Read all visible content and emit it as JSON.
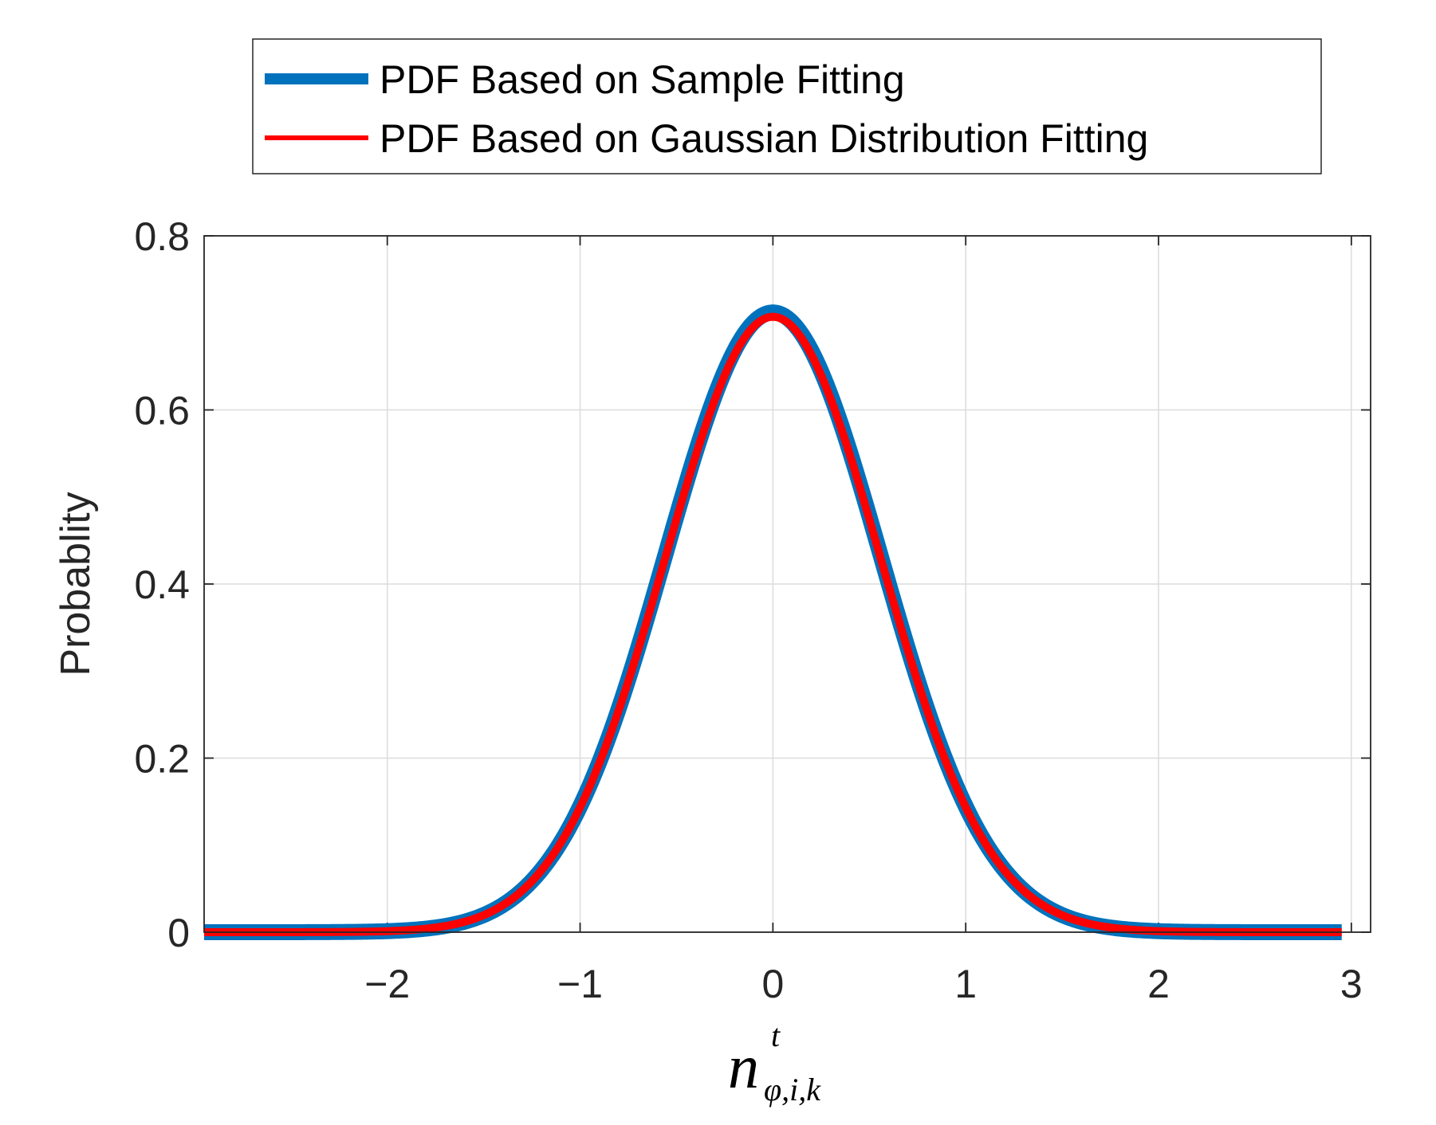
{
  "chart_data": {
    "type": "line",
    "title": "",
    "xlabel": {
      "base": "n",
      "superscript": "t",
      "subscript": "φ,i,k"
    },
    "ylabel": "Probablity",
    "xlim": [
      -2.95,
      3.1
    ],
    "ylim": [
      0,
      0.8
    ],
    "grid": true,
    "legend_position": "top (above axes)",
    "x_ticks": [
      -2,
      -1,
      0,
      1,
      2,
      3
    ],
    "x_tick_labels": [
      "−2",
      "−1",
      "0",
      "1",
      "2",
      "3"
    ],
    "y_ticks": [
      0,
      0.2,
      0.4,
      0.6,
      0.8
    ],
    "y_tick_labels": [
      "0",
      "0.2",
      "0.4",
      "0.6",
      "0.8"
    ],
    "x_range": [
      -2.95,
      2.95
    ],
    "series": [
      {
        "name": "PDF Based on Sample Fitting",
        "color": "#0072BD",
        "distribution": "gaussian",
        "mean": 0,
        "std": 0.56,
        "peak": 0.712,
        "line_role": "thick"
      },
      {
        "name": "PDF Based on Gaussian Distribution Fitting",
        "color": "#FF0000",
        "distribution": "gaussian",
        "mean": 0,
        "std": 0.56,
        "peak": 0.707,
        "line_role": "thin"
      }
    ]
  }
}
